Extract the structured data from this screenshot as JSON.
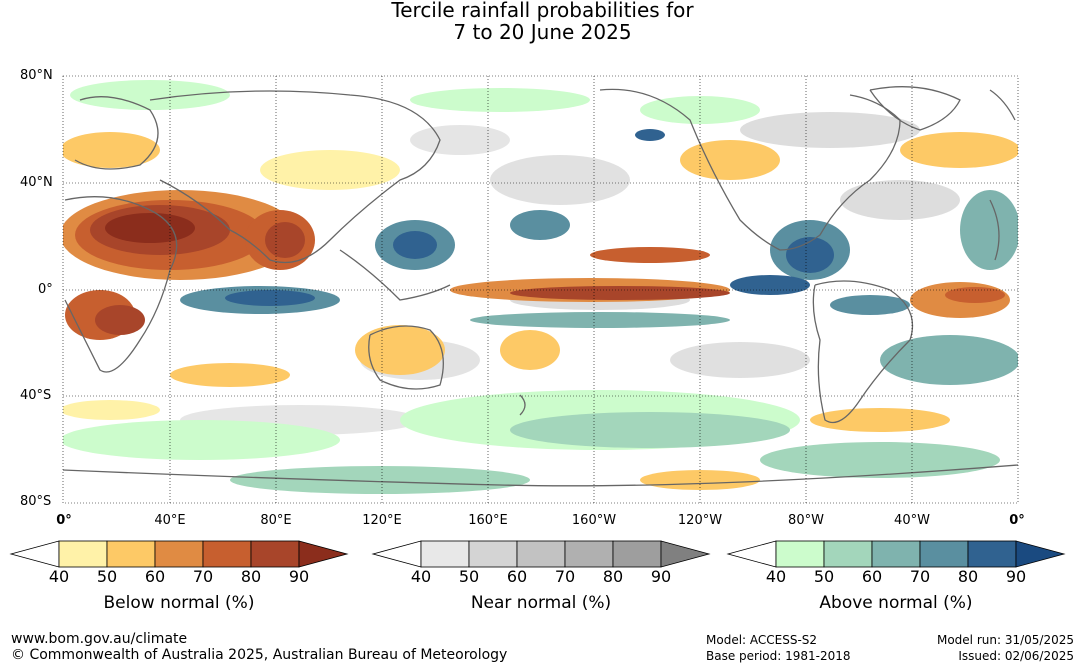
{
  "title_line1": "Tercile rainfall probabilities for",
  "title_line2": "7 to 20 June 2025",
  "lat_labels": [
    "80°N",
    "40°N",
    "0°",
    "40°S",
    "80°S"
  ],
  "lon_labels": [
    "0°",
    "40°E",
    "80°E",
    "120°E",
    "160°E",
    "160°W",
    "120°W",
    "80°W",
    "40°W",
    "0°"
  ],
  "colorbars": [
    {
      "title": "Below normal (%)",
      "ticks": [
        "40",
        "50",
        "60",
        "70",
        "80",
        "90"
      ],
      "colors": [
        "#fff2a8",
        "#fdc966",
        "#e08b43",
        "#c75f2f",
        "#a8452a",
        "#8b2d1c"
      ]
    },
    {
      "title": "Near normal (%)",
      "ticks": [
        "40",
        "50",
        "60",
        "70",
        "80",
        "90"
      ],
      "colors": [
        "#e8e8e8",
        "#d4d4d4",
        "#c2c2c2",
        "#b0b0b0",
        "#9e9e9e",
        "#808080"
      ]
    },
    {
      "title": "Above normal (%)",
      "ticks": [
        "40",
        "50",
        "60",
        "70",
        "80",
        "90"
      ],
      "colors": [
        "#ccfccc",
        "#a3d6bb",
        "#7fb3ae",
        "#5a8fa0",
        "#306290",
        "#1a4a80"
      ]
    }
  ],
  "footer": {
    "website": "www.bom.gov.au/climate",
    "copyright": "© Commonwealth of Australia 2025, Australian Bureau of Meteorology",
    "model": "Model: ACCESS-S2",
    "base_period": "Base period: 1981-2018",
    "model_run": "Model run: 31/05/2025",
    "issued": "Issued: 02/06/2025"
  }
}
